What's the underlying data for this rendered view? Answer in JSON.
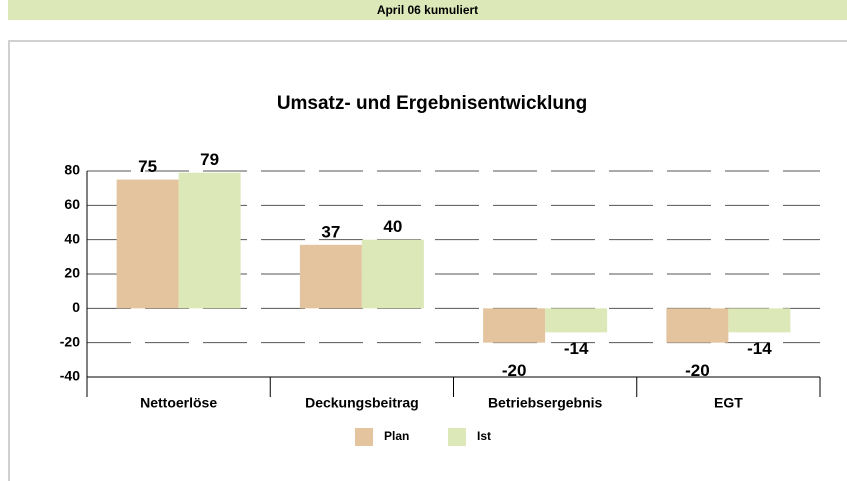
{
  "header": {
    "title": "April 06 kumuliert"
  },
  "chart_data": {
    "type": "bar",
    "title": "Umsatz- und Ergebnisentwicklung",
    "categories": [
      "Nettoerlöse",
      "Deckungsbeitrag",
      "Betriebsergebnis",
      "EGT"
    ],
    "series": [
      {
        "name": "Plan",
        "color": "#e3c49f",
        "values": [
          75,
          37,
          -20,
          -20
        ]
      },
      {
        "name": "Ist",
        "color": "#dde8b8",
        "values": [
          79,
          40,
          -14,
          -14
        ]
      }
    ],
    "ylim": [
      -40,
      80
    ],
    "yticks": [
      -40,
      -20,
      0,
      20,
      40,
      60,
      80
    ],
    "grid": true,
    "legend": "bottom"
  }
}
